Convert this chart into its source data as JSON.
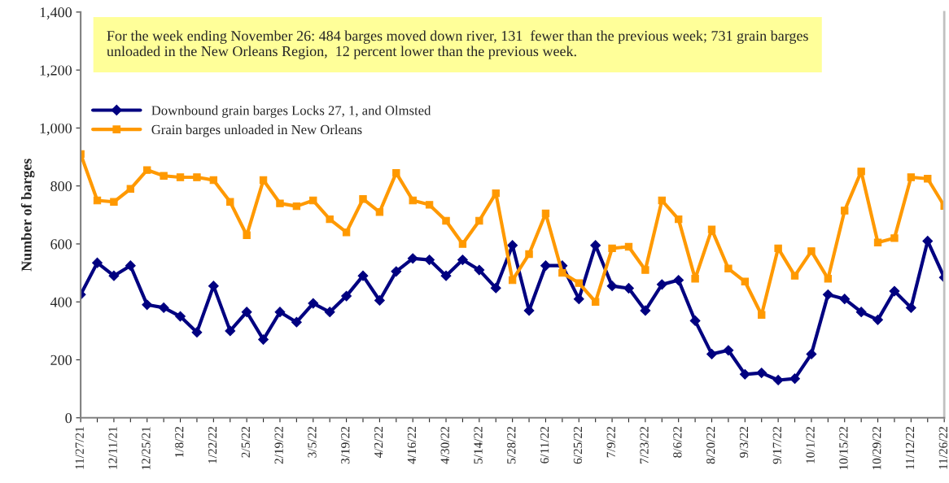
{
  "chart_data": {
    "type": "line",
    "ylabel": "Number of barges",
    "categories": [
      "11/27/21",
      null,
      "12/11/21",
      null,
      "12/25/21",
      null,
      "1/8/22",
      null,
      "1/22/22",
      null,
      "2/5/22",
      null,
      "2/19/22",
      null,
      "3/5/22",
      null,
      "3/19/22",
      null,
      "4/2/22",
      null,
      "4/16/22",
      null,
      "4/30/22",
      null,
      "5/14/22",
      null,
      "5/28/22",
      null,
      "6/11/22",
      null,
      "6/25/22",
      null,
      "7/9/22",
      null,
      "7/23/22",
      null,
      "8/6/22",
      null,
      "8/20/22",
      null,
      "9/3/22",
      null,
      "9/17/22",
      null,
      "10/1/22",
      null,
      "10/15/22",
      null,
      "10/29/22",
      null,
      "11/12/22",
      null,
      "11/26/22"
    ],
    "series": [
      {
        "name": "Downbound grain barges Locks 27, 1, and Olmsted",
        "color": "#000080",
        "marker": "diamond",
        "values": [
          425,
          535,
          490,
          525,
          390,
          380,
          350,
          295,
          455,
          300,
          365,
          270,
          365,
          330,
          395,
          365,
          420,
          490,
          405,
          505,
          550,
          545,
          490,
          545,
          510,
          448,
          595,
          370,
          525,
          525,
          410,
          595,
          455,
          447,
          370,
          460,
          475,
          335,
          220,
          233,
          150,
          155,
          130,
          135,
          220,
          425,
          410,
          365,
          338,
          437,
          380,
          610,
          484
        ]
      },
      {
        "name": "Grain barges unloaded in New Orleans",
        "color": "#ff9900",
        "marker": "square",
        "values": [
          910,
          750,
          745,
          790,
          855,
          835,
          830,
          830,
          820,
          745,
          630,
          820,
          740,
          730,
          750,
          685,
          640,
          755,
          710,
          845,
          750,
          735,
          680,
          600,
          680,
          775,
          475,
          565,
          705,
          500,
          465,
          400,
          585,
          590,
          510,
          750,
          685,
          480,
          650,
          515,
          470,
          355,
          585,
          490,
          575,
          480,
          715,
          850,
          605,
          620,
          830,
          825,
          731
        ]
      }
    ],
    "ylim": [
      0,
      1400
    ],
    "yticks": [
      {
        "value": 0,
        "label": "0"
      },
      {
        "value": 200,
        "label": "200"
      },
      {
        "value": 400,
        "label": "400"
      },
      {
        "value": 600,
        "label": "600"
      },
      {
        "value": 800,
        "label": "800"
      },
      {
        "value": 1000,
        "label": "1,000"
      },
      {
        "value": 1200,
        "label": "1,200"
      },
      {
        "value": 1400,
        "label": "1,400"
      }
    ],
    "annotations": [
      "For the week ending November 26: 484 barges moved down river, 131  fewer than the previous week; 731 grain barges unloaded in the New Orleans Region,  12 percent lower than the previous week."
    ],
    "grid": false,
    "legend": "top left",
    "line_style": "solid"
  }
}
